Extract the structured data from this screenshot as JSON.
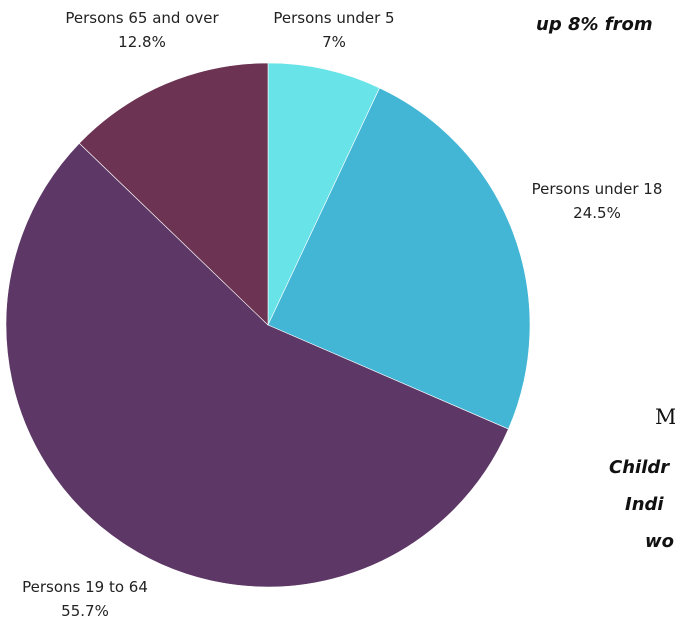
{
  "chart_data": {
    "type": "pie",
    "title": "",
    "slices": [
      {
        "label": "Persons under 5",
        "value": 7,
        "display": "7%",
        "color": "#68e4e8"
      },
      {
        "label": "Persons under 18",
        "value": 24.5,
        "display": "24.5%",
        "color": "#43b6d6"
      },
      {
        "label": "Persons 19 to 64",
        "value": 55.7,
        "display": "55.7%",
        "color": "#5d3867"
      },
      {
        "label": "Persons 65 and over",
        "value": 12.8,
        "display": "12.8%",
        "color": "#6d3352"
      }
    ]
  },
  "side_text": {
    "headline_fragment": "up 8% from",
    "serif_letter": "M",
    "line_1": "Childr",
    "line_2": "Indi",
    "line_3": "wo"
  }
}
